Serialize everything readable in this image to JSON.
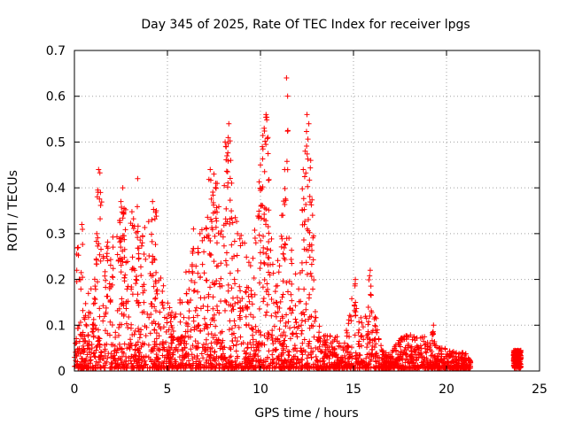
{
  "chart_data": {
    "type": "scatter",
    "title": "Day 345 of 2025, Rate Of TEC Index for receiver lpgs",
    "xlabel": "GPS time / hours",
    "ylabel": "ROTI / TECUs",
    "xlim": [
      0,
      25
    ],
    "ylim": [
      0,
      0.7
    ],
    "x_ticks": [
      "0",
      "5",
      "10",
      "15",
      "20",
      "25"
    ],
    "y_ticks": [
      "0",
      "0.1",
      "0.2",
      "0.3",
      "0.4",
      "0.5",
      "0.6",
      "0.7"
    ],
    "grid": true,
    "marker": "+",
    "series": [
      {
        "name": "ROTI",
        "color": "#ff0000",
        "envelope": [
          [
            0.0,
            0.08
          ],
          [
            0.5,
            0.14
          ],
          [
            1.0,
            0.2
          ],
          [
            1.5,
            0.26
          ],
          [
            2.0,
            0.3
          ],
          [
            2.5,
            0.36
          ],
          [
            3.0,
            0.36
          ],
          [
            3.5,
            0.3
          ],
          [
            4.0,
            0.33
          ],
          [
            4.5,
            0.22
          ],
          [
            5.0,
            0.16
          ],
          [
            5.5,
            0.12
          ],
          [
            6.0,
            0.22
          ],
          [
            6.5,
            0.28
          ],
          [
            7.0,
            0.32
          ],
          [
            7.5,
            0.38
          ],
          [
            8.0,
            0.34
          ],
          [
            8.5,
            0.36
          ],
          [
            9.0,
            0.3
          ],
          [
            9.5,
            0.26
          ],
          [
            10.0,
            0.4
          ],
          [
            10.5,
            0.3
          ],
          [
            11.0,
            0.24
          ],
          [
            11.5,
            0.3
          ],
          [
            12.0,
            0.2
          ],
          [
            12.5,
            0.4
          ],
          [
            13.0,
            0.12
          ],
          [
            13.5,
            0.08
          ],
          [
            14.0,
            0.08
          ],
          [
            14.5,
            0.06
          ],
          [
            15.0,
            0.18
          ],
          [
            15.5,
            0.1
          ],
          [
            16.0,
            0.18
          ],
          [
            16.5,
            0.05
          ],
          [
            17.0,
            0.04
          ],
          [
            17.5,
            0.07
          ],
          [
            18.0,
            0.08
          ],
          [
            18.5,
            0.07
          ],
          [
            19.0,
            0.08
          ],
          [
            19.5,
            0.05
          ],
          [
            20.0,
            0.05
          ],
          [
            20.5,
            0.04
          ],
          [
            21.0,
            0.04
          ],
          [
            21.3,
            0.02
          ]
        ],
        "late_cluster": {
          "x_range": [
            23.6,
            24.0
          ],
          "y_max": 0.045
        },
        "peaks": [
          [
            0.2,
            0.27
          ],
          [
            0.4,
            0.32
          ],
          [
            1.3,
            0.44
          ],
          [
            1.4,
            0.39
          ],
          [
            1.2,
            0.3
          ],
          [
            2.6,
            0.4
          ],
          [
            2.5,
            0.37
          ],
          [
            3.4,
            0.42
          ],
          [
            4.2,
            0.37
          ],
          [
            4.4,
            0.35
          ],
          [
            6.4,
            0.31
          ],
          [
            7.3,
            0.44
          ],
          [
            7.5,
            0.43
          ],
          [
            7.6,
            0.41
          ],
          [
            8.1,
            0.5
          ],
          [
            8.3,
            0.54
          ],
          [
            8.4,
            0.46
          ],
          [
            8.2,
            0.47
          ],
          [
            10.3,
            0.56
          ],
          [
            10.2,
            0.53
          ],
          [
            10.4,
            0.51
          ],
          [
            10.1,
            0.49
          ],
          [
            10.0,
            0.45
          ],
          [
            11.4,
            0.64
          ],
          [
            11.3,
            0.44
          ],
          [
            11.2,
            0.34
          ],
          [
            12.5,
            0.56
          ],
          [
            12.6,
            0.54
          ],
          [
            12.4,
            0.48
          ],
          [
            12.7,
            0.46
          ],
          [
            12.3,
            0.44
          ],
          [
            12.8,
            0.34
          ],
          [
            15.1,
            0.2
          ],
          [
            15.9,
            0.22
          ],
          [
            19.3,
            0.1
          ]
        ]
      }
    ]
  }
}
